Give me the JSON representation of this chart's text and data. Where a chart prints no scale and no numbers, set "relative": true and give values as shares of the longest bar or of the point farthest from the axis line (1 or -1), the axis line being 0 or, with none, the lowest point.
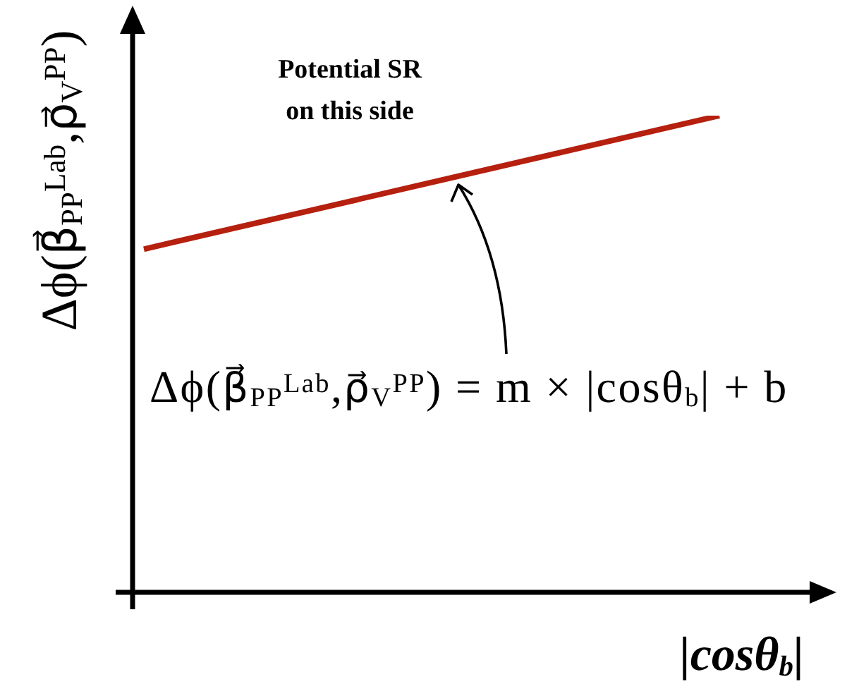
{
  "chart_data": {
    "type": "line",
    "relative": true,
    "categories": [
      null,
      null
    ],
    "values": [
      0.72,
      1
    ],
    "color": "#b5200f",
    "ylabel": "Δϕ(β⃗$_{PP}$$^{Lab}$,ρ⃗$_{V}$$^{PP}$)",
    "xlabel": "|cosθ$_{b}$|",
    "annotations": [
      "Potential SR on this side",
      "Δϕ(β⃗$_{PP}$$^{Lab}$,ρ⃗$_{V}$$^{PP}$) = m × |cosθ$_{b}$| + b"
    ]
  }
}
